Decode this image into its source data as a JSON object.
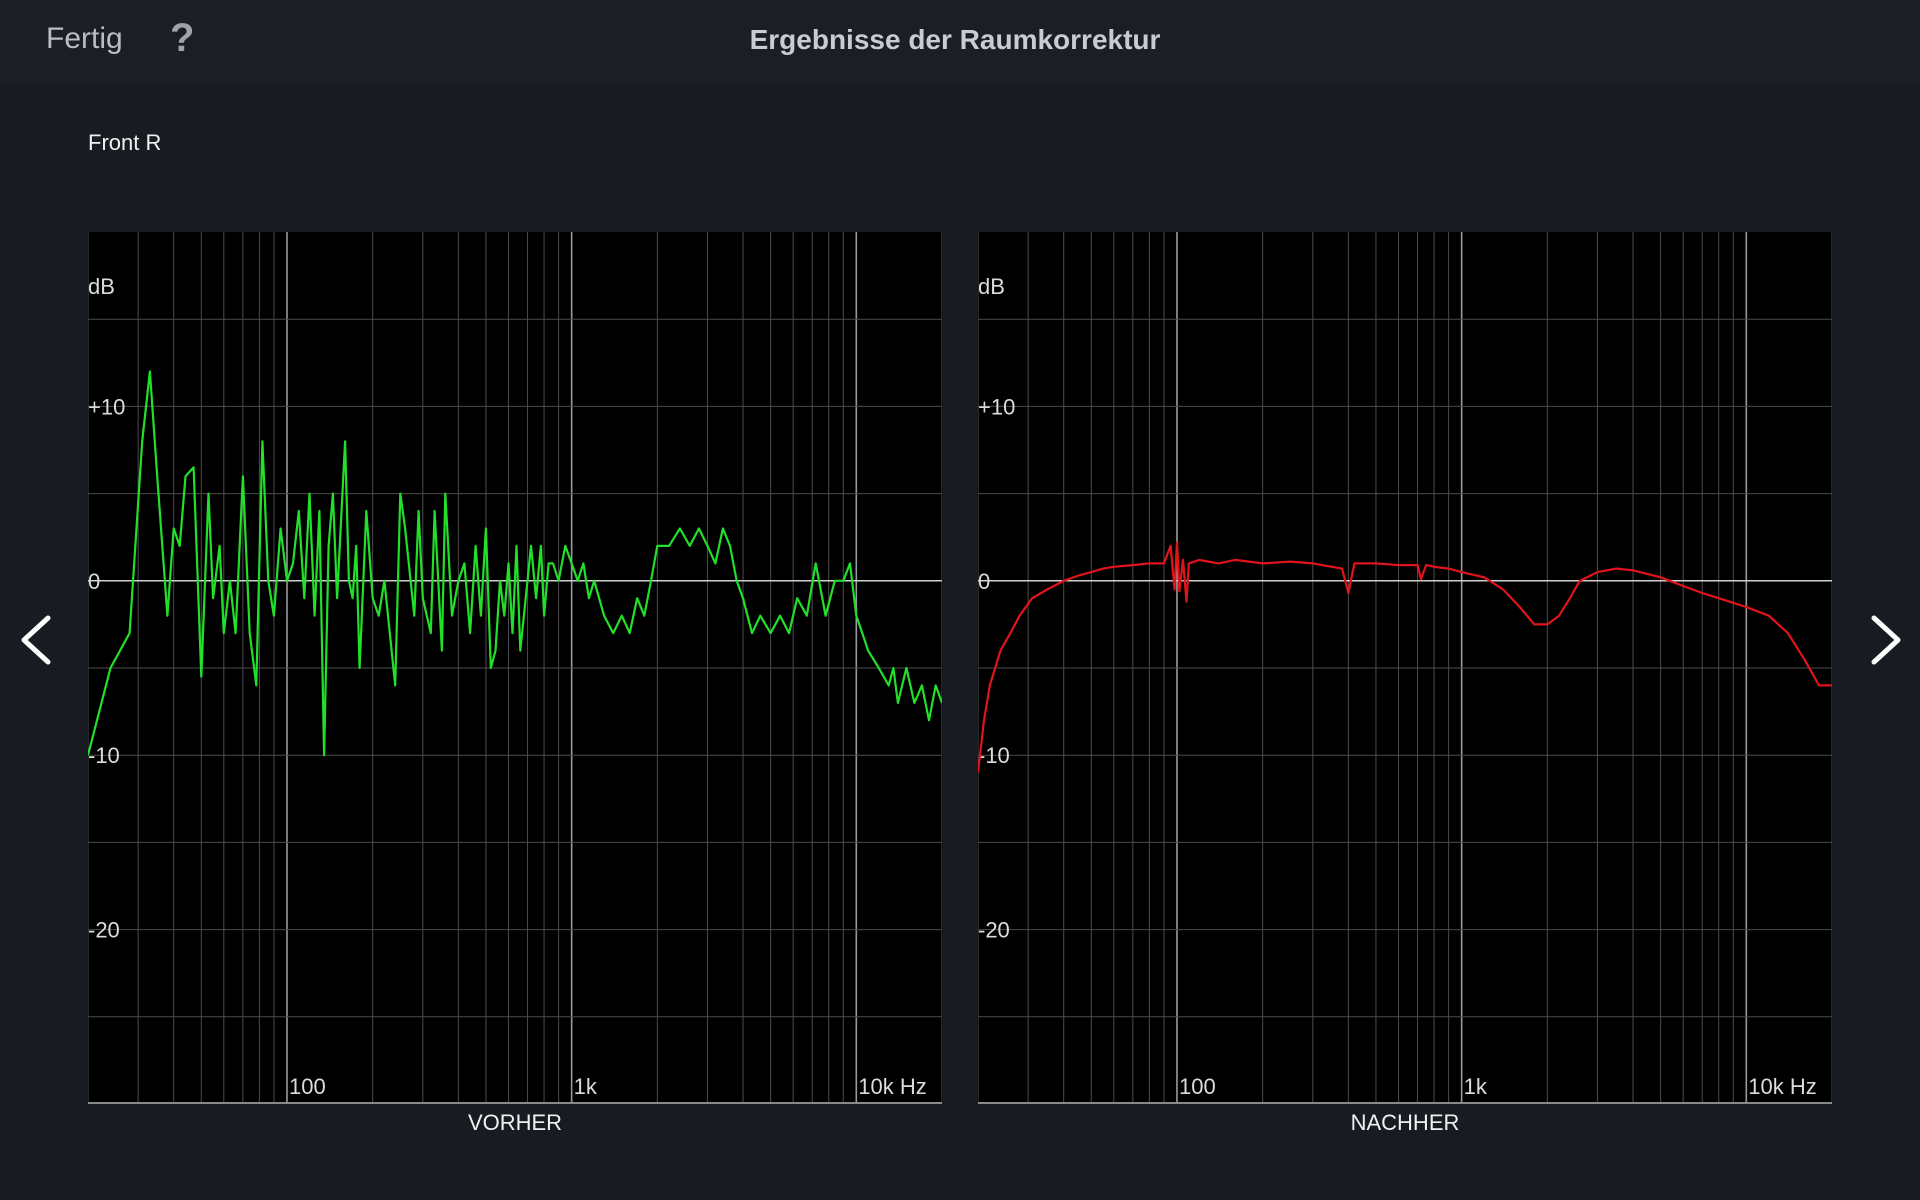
{
  "header": {
    "done_label": "Fertig",
    "help_label": "?",
    "title": "Ergebnisse der Raumkorrektur"
  },
  "channel": "Front R",
  "navigation": {
    "prev_icon": "chevron-left-icon",
    "next_icon": "chevron-right-icon"
  },
  "chart_data": [
    {
      "type": "line",
      "caption": "VORHER",
      "unit_label": "dB",
      "x_scale": "log",
      "xlim": [
        20,
        20000
      ],
      "ylim": [
        -30,
        20
      ],
      "y_ticks": [
        {
          "value": 10,
          "label": "+10"
        },
        {
          "value": 0,
          "label": "0"
        },
        {
          "value": -10,
          "label": "-10"
        },
        {
          "value": -20,
          "label": "-20"
        }
      ],
      "x_ticks": [
        {
          "value": 100,
          "label": "100"
        },
        {
          "value": 1000,
          "label": "1k"
        },
        {
          "value": 10000,
          "label": "10k Hz"
        }
      ],
      "grid": true,
      "color": "#22e02a",
      "series": [
        {
          "x": [
            20,
            24,
            28,
            31,
            33,
            35,
            38,
            40,
            42,
            44,
            47,
            50,
            53,
            55,
            58,
            60,
            63,
            66,
            70,
            74,
            78,
            82,
            86,
            90,
            95,
            100,
            105,
            110,
            115,
            120,
            125,
            130,
            135,
            140,
            145,
            150,
            160,
            165,
            170,
            175,
            180,
            190,
            200,
            210,
            220,
            240,
            250,
            260,
            280,
            290,
            300,
            320,
            330,
            350,
            360,
            380,
            400,
            420,
            440,
            460,
            480,
            500,
            520,
            540,
            560,
            580,
            600,
            620,
            640,
            660,
            700,
            720,
            750,
            780,
            800,
            830,
            860,
            900,
            950,
            1000,
            1050,
            1100,
            1150,
            1200,
            1300,
            1400,
            1500,
            1600,
            1700,
            1800,
            1900,
            2000,
            2200,
            2400,
            2600,
            2800,
            3000,
            3200,
            3400,
            3600,
            3800,
            4000,
            4300,
            4600,
            5000,
            5400,
            5800,
            6200,
            6700,
            7200,
            7800,
            8400,
            9000,
            9500,
            10000,
            10500,
            11000,
            12000,
            13000,
            13500,
            14000,
            15000,
            16000,
            17000,
            18000,
            19000,
            20000
          ],
          "y": [
            -10,
            -5,
            -3,
            8,
            12,
            6,
            -2,
            3,
            2,
            6,
            6.5,
            -5.5,
            5,
            -1,
            2,
            -3,
            0,
            -3,
            6,
            -3,
            -6,
            8,
            0,
            -2,
            3,
            0,
            1,
            4,
            -1,
            5,
            -2,
            4,
            -10,
            2,
            5,
            -1,
            8,
            0,
            -1,
            2,
            -5,
            4,
            -1,
            -2,
            0,
            -6,
            5,
            3,
            -2,
            4,
            -1,
            -3,
            4,
            -4,
            5,
            -2,
            0,
            1,
            -3,
            2,
            -2,
            3,
            -5,
            -4,
            0,
            -2,
            1,
            -3,
            2,
            -4,
            0,
            2,
            -1,
            2,
            -2,
            1,
            1,
            0,
            2,
            1,
            0,
            1,
            -1,
            0,
            -2,
            -3,
            -2,
            -3,
            -1,
            -2,
            0,
            2,
            2,
            3,
            2,
            3,
            2,
            1,
            3,
            2,
            0,
            -1,
            -3,
            -2,
            -3,
            -2,
            -3,
            -1,
            -2,
            1,
            -2,
            0,
            0,
            1,
            -2,
            -3,
            -4,
            -5,
            -6,
            -5,
            -7,
            -5,
            -7,
            -6,
            -8,
            -6,
            -7
          ]
        }
      ]
    },
    {
      "type": "line",
      "caption": "NACHHER",
      "unit_label": "dB",
      "x_scale": "log",
      "xlim": [
        20,
        20000
      ],
      "ylim": [
        -30,
        20
      ],
      "y_ticks": [
        {
          "value": 10,
          "label": "+10"
        },
        {
          "value": 0,
          "label": "0"
        },
        {
          "value": -10,
          "label": "-10"
        },
        {
          "value": -20,
          "label": "-20"
        }
      ],
      "x_ticks": [
        {
          "value": 100,
          "label": "100"
        },
        {
          "value": 1000,
          "label": "1k"
        },
        {
          "value": 10000,
          "label": "10k Hz"
        }
      ],
      "grid": true,
      "color": "#e0141a",
      "series": [
        {
          "x": [
            20,
            21,
            22,
            24,
            26,
            28,
            31,
            35,
            40,
            45,
            50,
            55,
            60,
            70,
            80,
            90,
            95,
            98,
            100,
            102,
            105,
            108,
            110,
            115,
            120,
            140,
            160,
            200,
            250,
            300,
            350,
            380,
            400,
            420,
            450,
            500,
            600,
            700,
            720,
            750,
            800,
            900,
            1000,
            1200,
            1400,
            1600,
            1800,
            2000,
            2200,
            2400,
            2600,
            3000,
            3500,
            4000,
            5000,
            6000,
            7000,
            8000,
            10000,
            12000,
            14000,
            16000,
            18000,
            20000
          ],
          "y": [
            -11,
            -8,
            -6,
            -4,
            -3,
            -2,
            -1,
            -0.5,
            0,
            0.3,
            0.5,
            0.7,
            0.8,
            0.9,
            1.0,
            1.0,
            2,
            -0.5,
            2.2,
            -0.6,
            1.2,
            -1.2,
            1.0,
            1.1,
            1.2,
            1.0,
            1.2,
            1.0,
            1.1,
            1.0,
            0.8,
            0.7,
            -0.7,
            1.0,
            1.0,
            1.0,
            0.9,
            0.9,
            0.1,
            0.9,
            0.8,
            0.7,
            0.5,
            0.2,
            -0.5,
            -1.5,
            -2.5,
            -2.5,
            -2.0,
            -1.0,
            0,
            0.5,
            0.7,
            0.6,
            0.2,
            -0.3,
            -0.7,
            -1.0,
            -1.5,
            -2.0,
            -3.0,
            -4.5,
            -6.0,
            -6.0
          ]
        }
      ]
    }
  ]
}
